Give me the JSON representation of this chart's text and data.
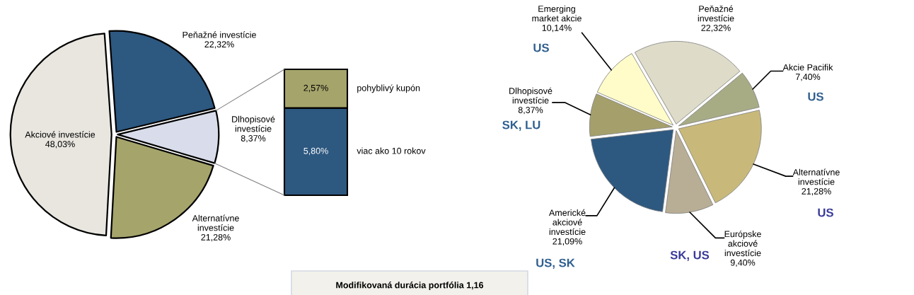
{
  "chart_data": [
    {
      "type": "pie",
      "categories": [
        "Peňažné investície",
        "Dlhopisové investície",
        "Alternatívne investície",
        "Akciové investície"
      ],
      "values": [
        22.32,
        8.37,
        21.28,
        48.03
      ],
      "colors": [
        "#2d5880",
        "#d9dceb",
        "#a5a46b",
        "#e8e6df"
      ],
      "value_labels": [
        "22,32%",
        "8,37%",
        "21,28%",
        "48,03%"
      ]
    },
    {
      "type": "bar",
      "stacked": true,
      "categories": [
        null
      ],
      "series": [
        {
          "name": "viac ako 10 rokov",
          "color": "#2d5880",
          "values": [
            5.8
          ],
          "value_labels": [
            "5,80%"
          ]
        },
        {
          "name": "pohyblivý kupón",
          "color": "#a5a46b",
          "values": [
            2.57
          ],
          "value_labels": [
            "2,57%"
          ]
        }
      ],
      "tick_labels": false,
      "annotations": [
        "Modifikovaná durácia portfólia 1,16"
      ]
    },
    {
      "type": "pie",
      "categories": [
        "Peňažné investície",
        "Akcie Pacifik",
        "Alternatívne investície",
        "Európske akciové investície",
        "Americké akciové investície",
        "Dlhopisové investície",
        "Emerging market akcie"
      ],
      "values": [
        22.32,
        7.4,
        21.28,
        9.4,
        21.09,
        8.37,
        10.14
      ],
      "colors": [
        "#dedcc8",
        "#a8ac85",
        "#c8b97a",
        "#b8ae95",
        "#2d5880",
        "#a5a06b",
        "#fffcca"
      ],
      "value_labels": [
        "22,32%",
        "7,40%",
        "21,28%",
        "9,40%",
        "21,09%",
        "8,37%",
        "10,14%"
      ],
      "annotations": [
        "US",
        "US",
        "SK, US",
        "US, SK",
        "SK, LU",
        "US"
      ]
    }
  ]
}
